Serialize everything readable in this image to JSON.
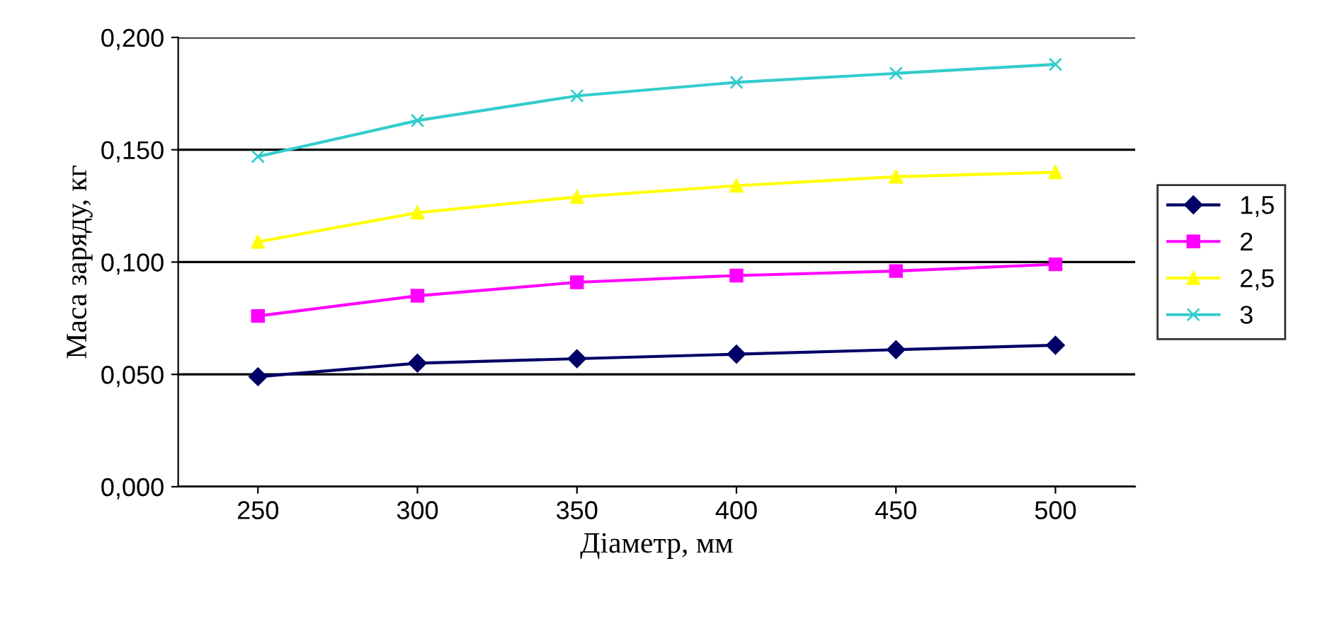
{
  "chart_data": {
    "type": "line",
    "xlabel": "Діаметр, мм",
    "ylabel": "Маса заряду, кг",
    "categories": [
      "250",
      "300",
      "350",
      "400",
      "450",
      "500"
    ],
    "series": [
      {
        "name": "1,5",
        "color": "#000066",
        "marker": "diamond",
        "values": [
          0.049,
          0.055,
          0.057,
          0.059,
          0.061,
          0.063
        ]
      },
      {
        "name": "2",
        "color": "#ff00ff",
        "marker": "square",
        "values": [
          0.076,
          0.085,
          0.091,
          0.094,
          0.096,
          0.099
        ]
      },
      {
        "name": "2,5",
        "color": "#ffff00",
        "marker": "triangle",
        "values": [
          0.109,
          0.122,
          0.129,
          0.134,
          0.138,
          0.14
        ]
      },
      {
        "name": "3",
        "color": "#33cccc",
        "marker": "cross",
        "values": [
          0.147,
          0.163,
          0.174,
          0.18,
          0.184,
          0.188
        ]
      }
    ],
    "ylim": [
      0,
      0.2
    ],
    "yticks": [
      {
        "value": 0,
        "label": "0,000"
      },
      {
        "value": 0.05,
        "label": "0,050"
      },
      {
        "value": 0.1,
        "label": "0,100"
      },
      {
        "value": 0.15,
        "label": "0,150"
      },
      {
        "value": 0.2,
        "label": "0,200"
      }
    ],
    "grid": "y",
    "legend": "right"
  }
}
